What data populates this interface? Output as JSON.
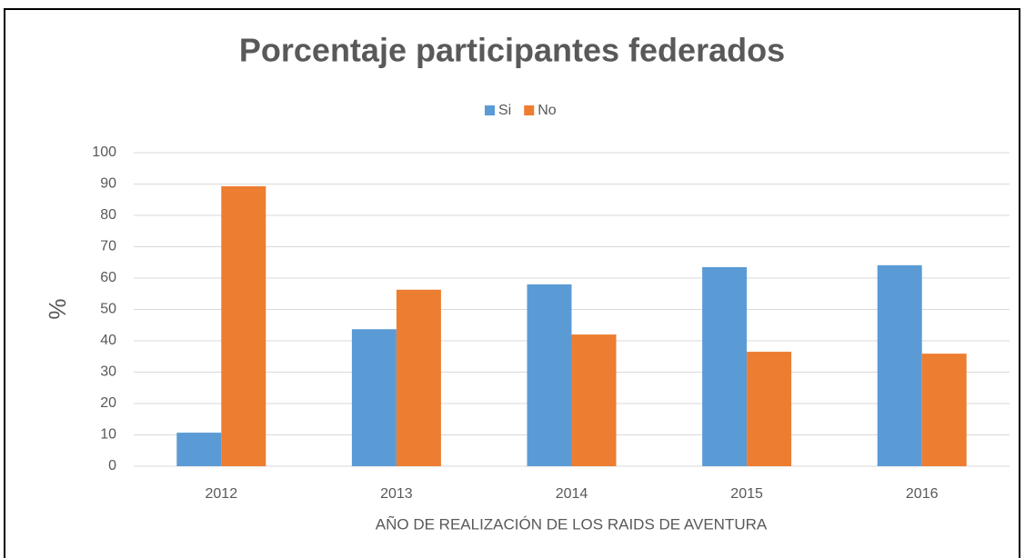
{
  "chart_data": {
    "type": "bar",
    "title": "Porcentaje participantes federados",
    "x_label": "AÑO DE REALIZACIÓN DE LOS RAIDS DE AVENTURA",
    "y_label": "%",
    "categories": [
      "2012",
      "2013",
      "2014",
      "2015",
      "2016"
    ],
    "series": [
      {
        "name": "Si",
        "color": "#5b9bd5",
        "values": [
          10.7,
          43.7,
          58,
          63.5,
          64.1
        ]
      },
      {
        "name": "No",
        "color": "#ed7d31",
        "values": [
          89.3,
          56.3,
          42,
          36.5,
          35.9
        ]
      }
    ],
    "ylim": [
      0,
      100
    ],
    "yticks": [
      0,
      10,
      20,
      30,
      40,
      50,
      60,
      70,
      80,
      90,
      100
    ],
    "grid": true,
    "legend": "top"
  }
}
